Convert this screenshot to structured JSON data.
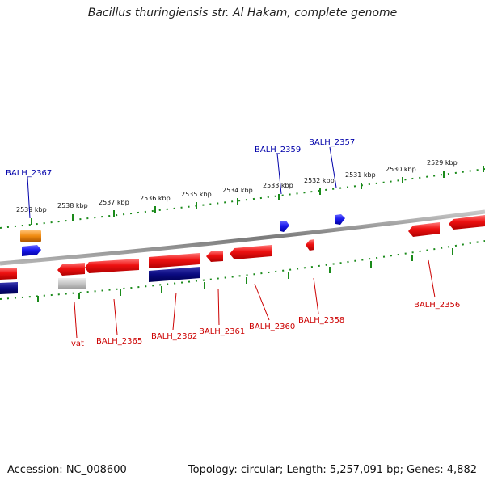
{
  "title": "Bacillus thuringiensis str. Al Hakam, complete genome",
  "footer": {
    "accession": "Accession: NC_008600",
    "summary": "Topology: circular; Length: 5,257,091 bp; Genes: 4,882"
  },
  "colors": {
    "backbone": "#8a8a8a",
    "ticks": "#1a8a1a",
    "red_gene": "#ee1111",
    "blue_gene": "#1a1aee",
    "navy_gene": "#0a0a80",
    "orange_gene": "#f08a10",
    "gray_gene": "#bbbbbb",
    "label_red": "#cc0000",
    "label_blue": "#0000aa"
  },
  "kbp_labels": [
    "2539 kbp",
    "2538 kbp",
    "2537 kbp",
    "2536 kbp",
    "2535 kbp",
    "2534 kbp",
    "2533 kbp",
    "2532 kbp",
    "2531 kbp",
    "2530 kbp",
    "2529 kbp"
  ],
  "gene_labels_top": [
    "BALH_2367",
    "BALH_2359",
    "BALH_2357"
  ],
  "gene_labels_bottom": [
    "vat",
    "BALH_2365",
    "BALH_2362",
    "BALH_2361",
    "BALH_2360",
    "BALH_2358",
    "BALH_2356"
  ]
}
